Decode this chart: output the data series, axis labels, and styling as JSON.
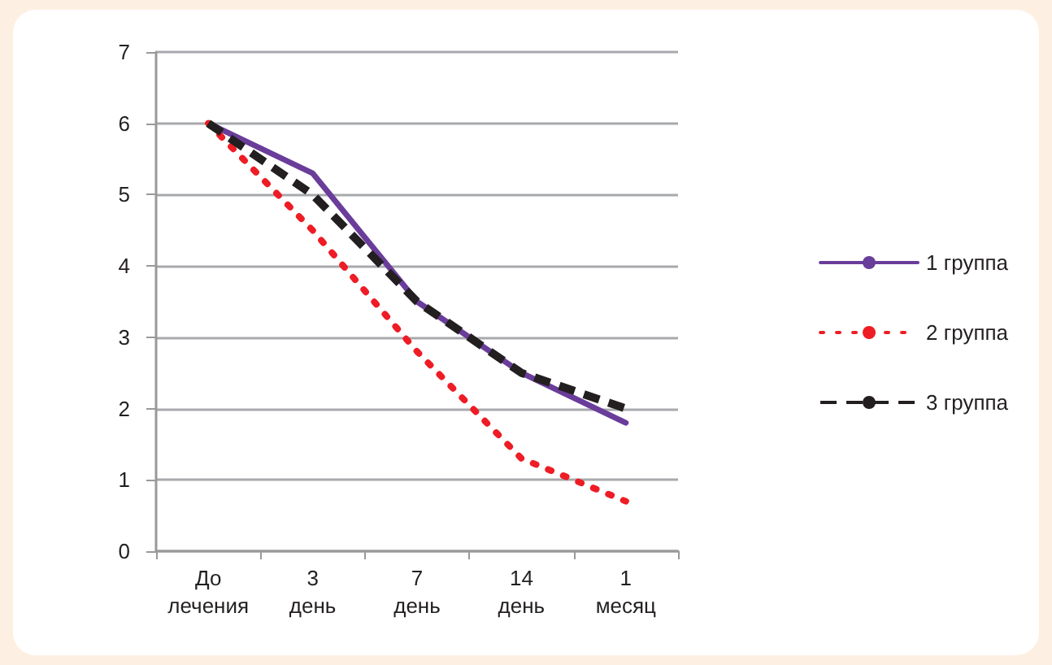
{
  "chart_data": {
    "type": "line",
    "categories": [
      "До\nлечения",
      "3\nдень",
      "7\nдень",
      "14\nдень",
      "1\nмесяц"
    ],
    "series": [
      {
        "name": "1 группа",
        "color": "#6a3d9a",
        "line_style": "solid",
        "values": [
          6,
          5.3,
          3.5,
          2.5,
          1.8
        ]
      },
      {
        "name": "2 группа",
        "color": "#ee1c25",
        "line_style": "dotted",
        "values": [
          6,
          4.5,
          2.8,
          1.3,
          0.7
        ]
      },
      {
        "name": "3 группа",
        "color": "#231f20",
        "line_style": "dashed",
        "values": [
          6,
          5.0,
          3.5,
          2.5,
          2.0
        ]
      }
    ],
    "ylim": [
      0,
      7
    ],
    "yticks": [
      0,
      1,
      2,
      3,
      4,
      5,
      6,
      7
    ],
    "grid": "y",
    "legend": "right",
    "marker": "none"
  }
}
